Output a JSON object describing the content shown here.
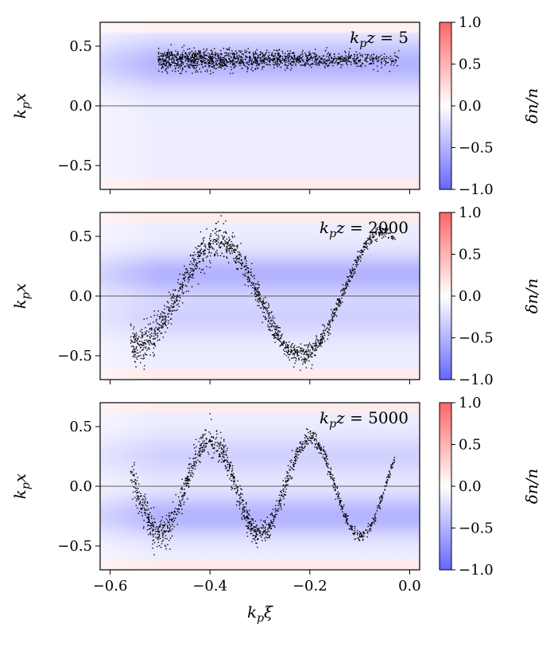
{
  "chart_data": [
    {
      "type": "scatter",
      "panel": "top",
      "annotation": {
        "var": "k",
        "sub": "p",
        "rest": "z = ",
        "value": "5"
      },
      "ylabel": {
        "var": "k",
        "sub": "p",
        "rest": "x"
      },
      "xlim": [
        -0.62,
        0.02
      ],
      "ylim": [
        -0.7,
        0.7
      ],
      "yticks": [
        -0.5,
        0.0,
        0.5
      ],
      "ytick_labels": [
        "−0.5",
        "0.0",
        "0.5"
      ],
      "beam": {
        "kind": "band",
        "x_start": -0.505,
        "x_end": -0.02,
        "center": 0.39,
        "spread": 0.045,
        "n_points": 1500
      },
      "background": {
        "kind": "channel",
        "blue_center": 0.35,
        "blue_width": 0.14,
        "red_edge": 0.62
      }
    },
    {
      "type": "scatter",
      "panel": "middle",
      "annotation": {
        "var": "k",
        "sub": "p",
        "rest": "z = ",
        "value": "2000"
      },
      "ylabel": {
        "var": "k",
        "sub": "p",
        "rest": "x"
      },
      "xlim": [
        -0.62,
        0.02
      ],
      "ylim": [
        -0.7,
        0.7
      ],
      "yticks": [
        -0.5,
        0.0,
        0.5
      ],
      "ytick_labels": [
        "−0.5",
        "0.0",
        "0.5"
      ],
      "beam": {
        "kind": "wave",
        "x_start": -0.56,
        "x_end": -0.03,
        "amplitude": 0.55,
        "wavelength": 0.33,
        "phase_x": -0.385,
        "envelope_grow": 0.25,
        "spread": 0.055,
        "n_points": 1500
      },
      "background": {
        "kind": "two-band",
        "blue_center": 0.18,
        "blue_width": 0.12,
        "red_edge": 0.62
      }
    },
    {
      "type": "scatter",
      "panel": "bottom",
      "annotation": {
        "var": "k",
        "sub": "p",
        "rest": "z = ",
        "value": "5000"
      },
      "ylabel": {
        "var": "k",
        "sub": "p",
        "rest": "x"
      },
      "xlabel": {
        "var": "k",
        "sub": "p",
        "rest": "ξ"
      },
      "xlim": [
        -0.62,
        0.02
      ],
      "ylim": [
        -0.7,
        0.7
      ],
      "yticks": [
        -0.5,
        0.0,
        0.5
      ],
      "ytick_labels": [
        "−0.5",
        "0.0",
        "0.5"
      ],
      "xticks": [
        -0.6,
        -0.4,
        -0.2,
        0.0
      ],
      "xtick_labels": [
        "−0.6",
        "−0.4",
        "−0.2",
        "0.0"
      ],
      "beam": {
        "kind": "wave",
        "x_start": -0.56,
        "x_end": -0.03,
        "amplitude": 0.42,
        "wavelength": 0.2,
        "phase_x": -0.4,
        "envelope_grow": 0.1,
        "spread": 0.05,
        "n_points": 1400
      },
      "background": {
        "kind": "two-band",
        "blue_center": -0.25,
        "blue_width": 0.12,
        "red_edge": 0.62
      }
    }
  ],
  "colorbar": {
    "label": "δn/n",
    "range": [
      -1.0,
      1.0
    ],
    "ticks": [
      -1.0,
      -0.5,
      0.0,
      0.5,
      1.0
    ],
    "tick_labels": [
      "−1.0",
      "−0.5",
      "0.0",
      "0.5",
      "1.0"
    ],
    "low_color": "#6666ff",
    "mid_color": "#ffffff",
    "high_color": "#ff6666"
  }
}
